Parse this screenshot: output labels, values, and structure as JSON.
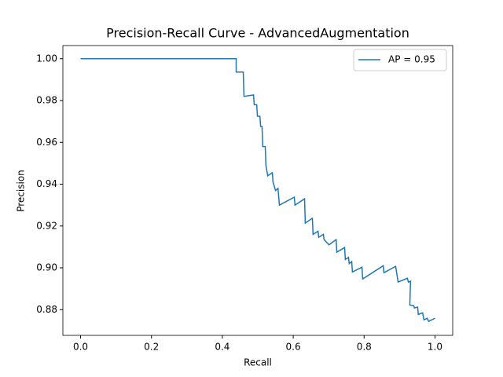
{
  "chart_data": {
    "type": "line",
    "title": "Precision-Recall Curve - AdvancedAugmentation",
    "x_label": "Recall",
    "y_label": "Precision",
    "xlim": [
      -0.05,
      1.05
    ],
    "xticks": [
      {
        "value": 0,
        "label": "0.0"
      },
      0.2,
      0.4,
      0.6,
      0.8,
      {
        "value": 1,
        "label": "1.0"
      }
    ],
    "ylim": [
      0.8677,
      1.0063
    ],
    "yticks": [
      0.88,
      {
        "value": 0.9,
        "label": "0.90"
      },
      0.92,
      0.94,
      0.96,
      0.98,
      {
        "value": 1,
        "label": "1.00"
      }
    ],
    "legend": "upper right",
    "series": [
      {
        "name": "AP = 0.95",
        "color": "#1f77b4",
        "x": [
          0,
          0.439,
          0.439,
          0.459,
          0.461,
          0.488,
          0.49,
          0.497,
          0.499,
          0.506,
          0.508,
          0.512,
          0.514,
          0.521,
          0.523,
          0.528,
          0.541,
          0.543,
          0.55,
          0.557,
          0.561,
          0.603,
          0.605,
          0.632,
          0.634,
          0.654,
          0.656,
          0.67,
          0.672,
          0.685,
          0.687,
          0.701,
          0.721,
          0.723,
          0.745,
          0.747,
          0.756,
          0.758,
          0.765,
          0.767,
          0.794,
          0.796,
          0.854,
          0.856,
          0.889,
          0.896,
          0.922,
          0.925,
          0.931,
          0.929,
          0.94,
          0.942,
          0.951,
          0.953,
          0.965,
          0.969,
          0.978,
          0.982,
          1
        ],
        "values": [
          1,
          1,
          0.9936,
          0.9936,
          0.982,
          0.9827,
          0.978,
          0.978,
          0.9725,
          0.9725,
          0.9676,
          0.9676,
          0.958,
          0.958,
          0.949,
          0.944,
          0.9455,
          0.941,
          0.937,
          0.938,
          0.93,
          0.9338,
          0.93,
          0.933,
          0.9214,
          0.9237,
          0.916,
          0.9175,
          0.9146,
          0.916,
          0.9135,
          0.911,
          0.9135,
          0.9075,
          0.9097,
          0.904,
          0.905,
          0.902,
          0.903,
          0.898,
          0.9003,
          0.8947,
          0.901,
          0.8977,
          0.9007,
          0.8932,
          0.895,
          0.8932,
          0.8936,
          0.8822,
          0.8819,
          0.8808,
          0.8812,
          0.8777,
          0.8785,
          0.8751,
          0.8759,
          0.8744,
          0.8759
        ]
      }
    ]
  }
}
